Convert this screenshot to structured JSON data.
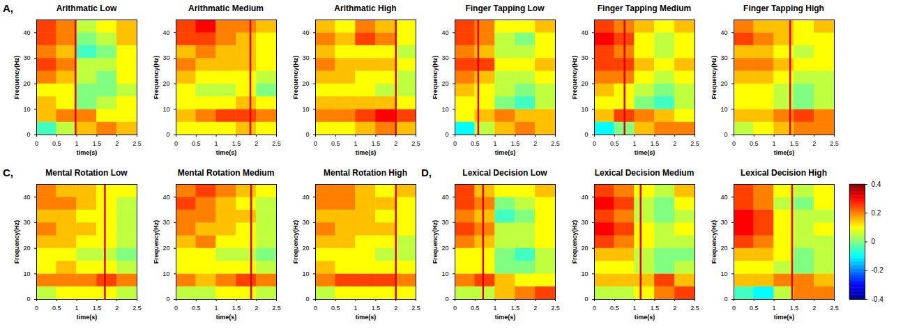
{
  "chart_data": [
    {
      "type": "heatmap",
      "panel": "A,",
      "title": "Arithmatic Low",
      "xlabel": "time(s)",
      "ylabel": "Frequency(Hz)",
      "x": [
        0.25,
        0.75,
        1.25,
        1.75,
        2.25
      ],
      "y": [
        2.5,
        7.5,
        12.5,
        17.5,
        22.5,
        27.5,
        32.5,
        37.5,
        42.5
      ],
      "values": [
        [
          -0.05,
          0.05,
          0.15,
          0.2,
          0.15
        ],
        [
          0.15,
          0.2,
          0.2,
          0.1,
          0.1
        ],
        [
          0.15,
          0.1,
          0.0,
          0.05,
          0.1
        ],
        [
          0.1,
          0.1,
          0.0,
          0.0,
          0.05
        ],
        [
          0.2,
          0.15,
          0.05,
          0.0,
          0.1
        ],
        [
          0.25,
          0.2,
          0.05,
          0.05,
          0.1
        ],
        [
          0.2,
          0.15,
          -0.05,
          0.0,
          0.1
        ],
        [
          0.25,
          0.2,
          0.0,
          0.05,
          0.15
        ],
        [
          0.25,
          0.2,
          0.05,
          0.1,
          0.15
        ]
      ],
      "xlim": [
        0,
        2.5
      ],
      "xticks": [
        0,
        0.5,
        1,
        1.5,
        2,
        2.5
      ],
      "ylim": [
        0,
        45
      ],
      "yticks": [
        0,
        10,
        20,
        30,
        40
      ],
      "marker_time": 0.97
    },
    {
      "type": "heatmap",
      "title": "Arithmatic Medium",
      "xlabel": "time(s)",
      "ylabel": "Frequency(Hz)",
      "x": [
        0.25,
        0.75,
        1.25,
        1.75,
        2.25
      ],
      "y": [
        2.5,
        7.5,
        12.5,
        17.5,
        22.5,
        27.5,
        32.5,
        37.5,
        42.5
      ],
      "values": [
        [
          0.1,
          0.1,
          0.1,
          0.15,
          0.1
        ],
        [
          0.15,
          0.2,
          0.25,
          0.25,
          0.2
        ],
        [
          0.1,
          0.1,
          0.1,
          0.15,
          0.1
        ],
        [
          0.1,
          0.05,
          0.05,
          0.1,
          0.0
        ],
        [
          0.15,
          0.1,
          0.1,
          0.1,
          0.05
        ],
        [
          0.2,
          0.15,
          0.15,
          0.15,
          0.1
        ],
        [
          0.15,
          0.2,
          0.15,
          0.15,
          0.1
        ],
        [
          0.25,
          0.25,
          0.2,
          0.15,
          0.1
        ],
        [
          0.25,
          0.3,
          0.2,
          0.2,
          0.15
        ]
      ],
      "xlim": [
        0,
        2.5
      ],
      "xticks": [
        0,
        0.5,
        1,
        1.5,
        2,
        2.5
      ],
      "ylim": [
        0,
        45
      ],
      "yticks": [
        0,
        10,
        20,
        30,
        40
      ],
      "marker_time": 1.85
    },
    {
      "type": "heatmap",
      "title": "Arithmatic High",
      "xlabel": "time(s)",
      "ylabel": "Frequency(Hz)",
      "x": [
        0.25,
        0.75,
        1.25,
        1.75,
        2.25
      ],
      "y": [
        2.5,
        7.5,
        12.5,
        17.5,
        22.5,
        27.5,
        32.5,
        37.5,
        42.5
      ],
      "values": [
        [
          0.1,
          0.1,
          0.15,
          0.2,
          0.15
        ],
        [
          0.2,
          0.2,
          0.25,
          0.3,
          0.25
        ],
        [
          0.15,
          0.15,
          0.15,
          0.15,
          0.1
        ],
        [
          0.1,
          0.1,
          0.1,
          0.05,
          0.05
        ],
        [
          0.15,
          0.15,
          0.1,
          0.1,
          0.05
        ],
        [
          0.2,
          0.15,
          0.15,
          0.15,
          0.1
        ],
        [
          0.15,
          0.1,
          0.1,
          0.1,
          0.05
        ],
        [
          0.2,
          0.15,
          0.25,
          0.2,
          0.1
        ],
        [
          0.15,
          0.1,
          0.2,
          0.15,
          0.1
        ]
      ],
      "xlim": [
        0,
        2.5
      ],
      "xticks": [
        0,
        0.5,
        1,
        1.5,
        2,
        2.5
      ],
      "ylim": [
        0,
        45
      ],
      "yticks": [
        0,
        10,
        20,
        30,
        40
      ],
      "marker_time": 2.0
    },
    {
      "type": "heatmap",
      "title": "Finger Tapping Low",
      "xlabel": "time(s)",
      "ylabel": "Frequency(Hz)",
      "x": [
        0.25,
        0.75,
        1.25,
        1.75,
        2.25
      ],
      "y": [
        2.5,
        7.5,
        12.5,
        17.5,
        22.5,
        27.5,
        32.5,
        37.5,
        42.5
      ],
      "values": [
        [
          -0.1,
          0.05,
          0.15,
          0.2,
          0.15
        ],
        [
          0.1,
          0.15,
          0.2,
          0.15,
          0.15
        ],
        [
          0.1,
          0.1,
          0.0,
          -0.05,
          0.05
        ],
        [
          0.15,
          0.1,
          0.05,
          0.0,
          0.05
        ],
        [
          0.2,
          0.15,
          0.05,
          0.05,
          0.1
        ],
        [
          0.25,
          0.25,
          0.1,
          0.1,
          0.15
        ],
        [
          0.2,
          0.15,
          0.05,
          0.05,
          0.1
        ],
        [
          0.25,
          0.2,
          0.05,
          0.0,
          0.1
        ],
        [
          0.25,
          0.2,
          0.1,
          0.1,
          0.15
        ]
      ],
      "xlim": [
        0,
        2.5
      ],
      "xticks": [
        0,
        0.5,
        1,
        1.5,
        2,
        2.5
      ],
      "ylim": [
        0,
        45
      ],
      "yticks": [
        0,
        10,
        20,
        30,
        40
      ],
      "marker_time": 0.58
    },
    {
      "type": "heatmap",
      "title": "Finger Tapping Medium",
      "xlabel": "time(s)",
      "ylabel": "Frequency(Hz)",
      "x": [
        0.25,
        0.75,
        1.25,
        1.75,
        2.25
      ],
      "y": [
        2.5,
        7.5,
        12.5,
        17.5,
        22.5,
        27.5,
        32.5,
        37.5,
        42.5
      ],
      "values": [
        [
          -0.1,
          0.0,
          0.15,
          0.2,
          0.2
        ],
        [
          0.15,
          0.25,
          0.2,
          0.15,
          0.1
        ],
        [
          0.1,
          0.1,
          0.0,
          -0.05,
          0.05
        ],
        [
          0.15,
          0.1,
          0.05,
          0.0,
          0.05
        ],
        [
          0.2,
          0.2,
          0.1,
          0.05,
          0.1
        ],
        [
          0.25,
          0.25,
          0.15,
          0.1,
          0.15
        ],
        [
          0.25,
          0.2,
          0.1,
          0.05,
          0.1
        ],
        [
          0.3,
          0.25,
          0.1,
          0.05,
          0.1
        ],
        [
          0.25,
          0.2,
          0.15,
          0.1,
          0.15
        ]
      ],
      "xlim": [
        0,
        2.5
      ],
      "xticks": [
        0,
        0.5,
        1,
        1.5,
        2,
        2.5
      ],
      "ylim": [
        0,
        45
      ],
      "yticks": [
        0,
        10,
        20,
        30,
        40
      ],
      "marker_time": 0.75
    },
    {
      "type": "heatmap",
      "title": "Finger Tapping High",
      "xlabel": "time(s)",
      "ylabel": "Frequency(Hz)",
      "x": [
        0.25,
        0.75,
        1.25,
        1.75,
        2.25
      ],
      "y": [
        2.5,
        7.5,
        12.5,
        17.5,
        22.5,
        27.5,
        32.5,
        37.5,
        42.5
      ],
      "values": [
        [
          0.05,
          0.1,
          0.15,
          0.2,
          0.2
        ],
        [
          0.15,
          0.15,
          0.2,
          0.25,
          0.2
        ],
        [
          0.1,
          0.1,
          0.05,
          0.0,
          0.05
        ],
        [
          0.1,
          0.1,
          0.05,
          0.0,
          0.05
        ],
        [
          0.15,
          0.15,
          0.1,
          0.05,
          0.05
        ],
        [
          0.2,
          0.2,
          0.15,
          0.1,
          0.1
        ],
        [
          0.15,
          0.15,
          0.1,
          0.05,
          0.1
        ],
        [
          0.25,
          0.2,
          0.15,
          0.1,
          0.1
        ],
        [
          0.2,
          0.15,
          0.15,
          0.1,
          0.15
        ]
      ],
      "xlim": [
        0,
        2.5
      ],
      "xticks": [
        0,
        0.5,
        1,
        1.5,
        2,
        2.5
      ],
      "ylim": [
        0,
        45
      ],
      "yticks": [
        0,
        10,
        20,
        30,
        40
      ],
      "marker_time": 1.4
    },
    {
      "type": "heatmap",
      "panel": "C,",
      "title": "Mental Rotation Low",
      "xlabel": "time(s)",
      "ylabel": "Frequency(Hz)",
      "x": [
        0.25,
        0.75,
        1.25,
        1.75,
        2.25
      ],
      "y": [
        2.5,
        7.5,
        12.5,
        17.5,
        22.5,
        27.5,
        32.5,
        37.5,
        42.5
      ],
      "values": [
        [
          0.05,
          0.1,
          0.1,
          0.1,
          0.05
        ],
        [
          0.2,
          0.2,
          0.2,
          0.25,
          0.2
        ],
        [
          0.1,
          0.15,
          0.1,
          0.1,
          0.05
        ],
        [
          0.1,
          0.1,
          0.05,
          0.05,
          0.0
        ],
        [
          0.15,
          0.15,
          0.1,
          0.1,
          0.05
        ],
        [
          0.2,
          0.15,
          0.15,
          0.1,
          0.05
        ],
        [
          0.15,
          0.15,
          0.1,
          0.1,
          0.05
        ],
        [
          0.2,
          0.2,
          0.15,
          0.1,
          0.05
        ],
        [
          0.2,
          0.15,
          0.15,
          0.1,
          0.1
        ]
      ],
      "xlim": [
        0,
        2.5
      ],
      "xticks": [
        0,
        0.5,
        1,
        1.5,
        2,
        2.5
      ],
      "ylim": [
        0,
        45
      ],
      "yticks": [
        0,
        10,
        20,
        30,
        40
      ],
      "marker_time": 1.7
    },
    {
      "type": "heatmap",
      "title": "Mental Rotation Medium",
      "xlabel": "time(s)",
      "ylabel": "Frequency(Hz)",
      "x": [
        0.25,
        0.75,
        1.25,
        1.75,
        2.25
      ],
      "y": [
        2.5,
        7.5,
        12.5,
        17.5,
        22.5,
        27.5,
        32.5,
        37.5,
        42.5
      ],
      "values": [
        [
          0.05,
          0.05,
          0.1,
          0.1,
          0.05
        ],
        [
          0.2,
          0.15,
          0.2,
          0.25,
          0.2
        ],
        [
          0.1,
          0.1,
          0.1,
          0.1,
          0.05
        ],
        [
          0.1,
          0.1,
          0.05,
          0.05,
          0.0
        ],
        [
          0.15,
          0.2,
          0.1,
          0.1,
          0.05
        ],
        [
          0.2,
          0.15,
          0.15,
          0.1,
          0.05
        ],
        [
          0.2,
          0.2,
          0.15,
          0.15,
          0.05
        ],
        [
          0.25,
          0.2,
          0.15,
          0.1,
          0.05
        ],
        [
          0.2,
          0.25,
          0.2,
          0.15,
          0.1
        ]
      ],
      "xlim": [
        0,
        2.5
      ],
      "xticks": [
        0,
        0.5,
        1,
        1.5,
        2,
        2.5
      ],
      "ylim": [
        0,
        45
      ],
      "yticks": [
        0,
        10,
        20,
        30,
        40
      ],
      "marker_time": 1.87
    },
    {
      "type": "heatmap",
      "title": "Mental Rotation High",
      "xlabel": "time(s)",
      "ylabel": "Frequency(Hz)",
      "x": [
        0.25,
        0.75,
        1.25,
        1.75,
        2.25
      ],
      "y": [
        2.5,
        7.5,
        12.5,
        17.5,
        22.5,
        27.5,
        32.5,
        37.5,
        42.5
      ],
      "values": [
        [
          0.05,
          0.1,
          0.1,
          0.1,
          0.1
        ],
        [
          0.2,
          0.25,
          0.25,
          0.25,
          0.2
        ],
        [
          0.15,
          0.1,
          0.1,
          0.1,
          0.1
        ],
        [
          0.1,
          0.1,
          0.1,
          0.05,
          0.05
        ],
        [
          0.15,
          0.15,
          0.1,
          0.1,
          0.05
        ],
        [
          0.2,
          0.15,
          0.15,
          0.15,
          0.1
        ],
        [
          0.15,
          0.15,
          0.15,
          0.1,
          0.1
        ],
        [
          0.2,
          0.2,
          0.15,
          0.15,
          0.1
        ],
        [
          0.2,
          0.2,
          0.15,
          0.1,
          0.15
        ]
      ],
      "xlim": [
        0,
        2.5
      ],
      "xticks": [
        0,
        0.5,
        1,
        1.5,
        2,
        2.5
      ],
      "ylim": [
        0,
        45
      ],
      "yticks": [
        0,
        10,
        20,
        30,
        40
      ],
      "marker_time": 2.0
    },
    {
      "type": "heatmap",
      "panel": "D,",
      "title": "Lexical Decision Low",
      "xlabel": "time(s)",
      "ylabel": "Frequency(Hz)",
      "x": [
        0.25,
        0.75,
        1.25,
        1.75,
        2.25
      ],
      "y": [
        2.5,
        7.5,
        12.5,
        17.5,
        22.5,
        27.5,
        32.5,
        37.5,
        42.5
      ],
      "values": [
        [
          0.05,
          0.05,
          0.15,
          0.2,
          0.25
        ],
        [
          0.2,
          0.25,
          0.15,
          0.1,
          0.1
        ],
        [
          0.1,
          0.1,
          0.0,
          0.0,
          0.05
        ],
        [
          0.1,
          0.1,
          0.0,
          -0.05,
          0.05
        ],
        [
          0.2,
          0.15,
          0.05,
          0.05,
          0.1
        ],
        [
          0.25,
          0.2,
          0.05,
          0.05,
          0.1
        ],
        [
          0.2,
          0.15,
          -0.05,
          0.0,
          0.1
        ],
        [
          0.25,
          0.2,
          0.0,
          0.05,
          0.1
        ],
        [
          0.25,
          0.15,
          0.1,
          0.1,
          0.15
        ]
      ],
      "xlim": [
        0,
        2.5
      ],
      "xticks": [
        0,
        0.5,
        1,
        1.5,
        2,
        2.5
      ],
      "ylim": [
        0,
        45
      ],
      "yticks": [
        0,
        10,
        20,
        30,
        40
      ],
      "marker_time": 0.7
    },
    {
      "type": "heatmap",
      "title": "Lexical Decision Medium",
      "xlabel": "time(s)",
      "ylabel": "Frequency(Hz)",
      "x": [
        0.25,
        0.75,
        1.25,
        1.75,
        2.25
      ],
      "y": [
        2.5,
        7.5,
        12.5,
        17.5,
        22.5,
        27.5,
        32.5,
        37.5,
        42.5
      ],
      "values": [
        [
          0.05,
          0.05,
          0.1,
          0.2,
          0.25
        ],
        [
          0.15,
          0.15,
          0.15,
          0.25,
          0.15
        ],
        [
          0.1,
          0.1,
          0.05,
          0.0,
          0.05
        ],
        [
          0.15,
          0.15,
          0.05,
          0.0,
          0.0
        ],
        [
          0.25,
          0.2,
          0.1,
          0.05,
          0.05
        ],
        [
          0.3,
          0.25,
          0.1,
          0.05,
          0.1
        ],
        [
          0.25,
          0.2,
          0.05,
          0.0,
          0.05
        ],
        [
          0.3,
          0.25,
          0.05,
          0.0,
          0.1
        ],
        [
          0.25,
          0.2,
          0.1,
          0.05,
          0.15
        ]
      ],
      "xlim": [
        0,
        2.5
      ],
      "xticks": [
        0,
        0.5,
        1,
        1.5,
        2,
        2.5
      ],
      "ylim": [
        0,
        45
      ],
      "yticks": [
        0,
        10,
        20,
        30,
        40
      ],
      "marker_time": 1.15
    },
    {
      "type": "heatmap",
      "title": "Lexical Decision High",
      "xlabel": "time(s)",
      "ylabel": "Frequency(Hz)",
      "x": [
        0.25,
        0.75,
        1.25,
        1.75,
        2.25
      ],
      "y": [
        2.5,
        7.5,
        12.5,
        17.5,
        22.5,
        27.5,
        32.5,
        37.5,
        42.5
      ],
      "values": [
        [
          -0.05,
          -0.1,
          0.05,
          0.2,
          0.2
        ],
        [
          0.15,
          0.15,
          0.2,
          0.2,
          0.15
        ],
        [
          0.1,
          0.1,
          0.05,
          0.0,
          0.05
        ],
        [
          0.15,
          0.15,
          0.1,
          0.0,
          0.05
        ],
        [
          0.25,
          0.2,
          0.1,
          0.05,
          0.05
        ],
        [
          0.3,
          0.25,
          0.1,
          0.05,
          0.1
        ],
        [
          0.3,
          0.25,
          0.1,
          0.05,
          0.05
        ],
        [
          0.25,
          0.2,
          0.05,
          0.0,
          0.1
        ],
        [
          0.25,
          0.2,
          0.1,
          0.05,
          0.1
        ]
      ],
      "xlim": [
        0,
        2.5
      ],
      "xticks": [
        0,
        0.5,
        1,
        1.5,
        2,
        2.5
      ],
      "ylim": [
        0,
        45
      ],
      "yticks": [
        0,
        10,
        20,
        30,
        40
      ],
      "marker_time": 1.45
    }
  ],
  "colorbar": {
    "range": [
      -0.4,
      0.4
    ],
    "ticks": [
      -0.4,
      -0.2,
      0,
      0.2,
      0.4
    ]
  }
}
